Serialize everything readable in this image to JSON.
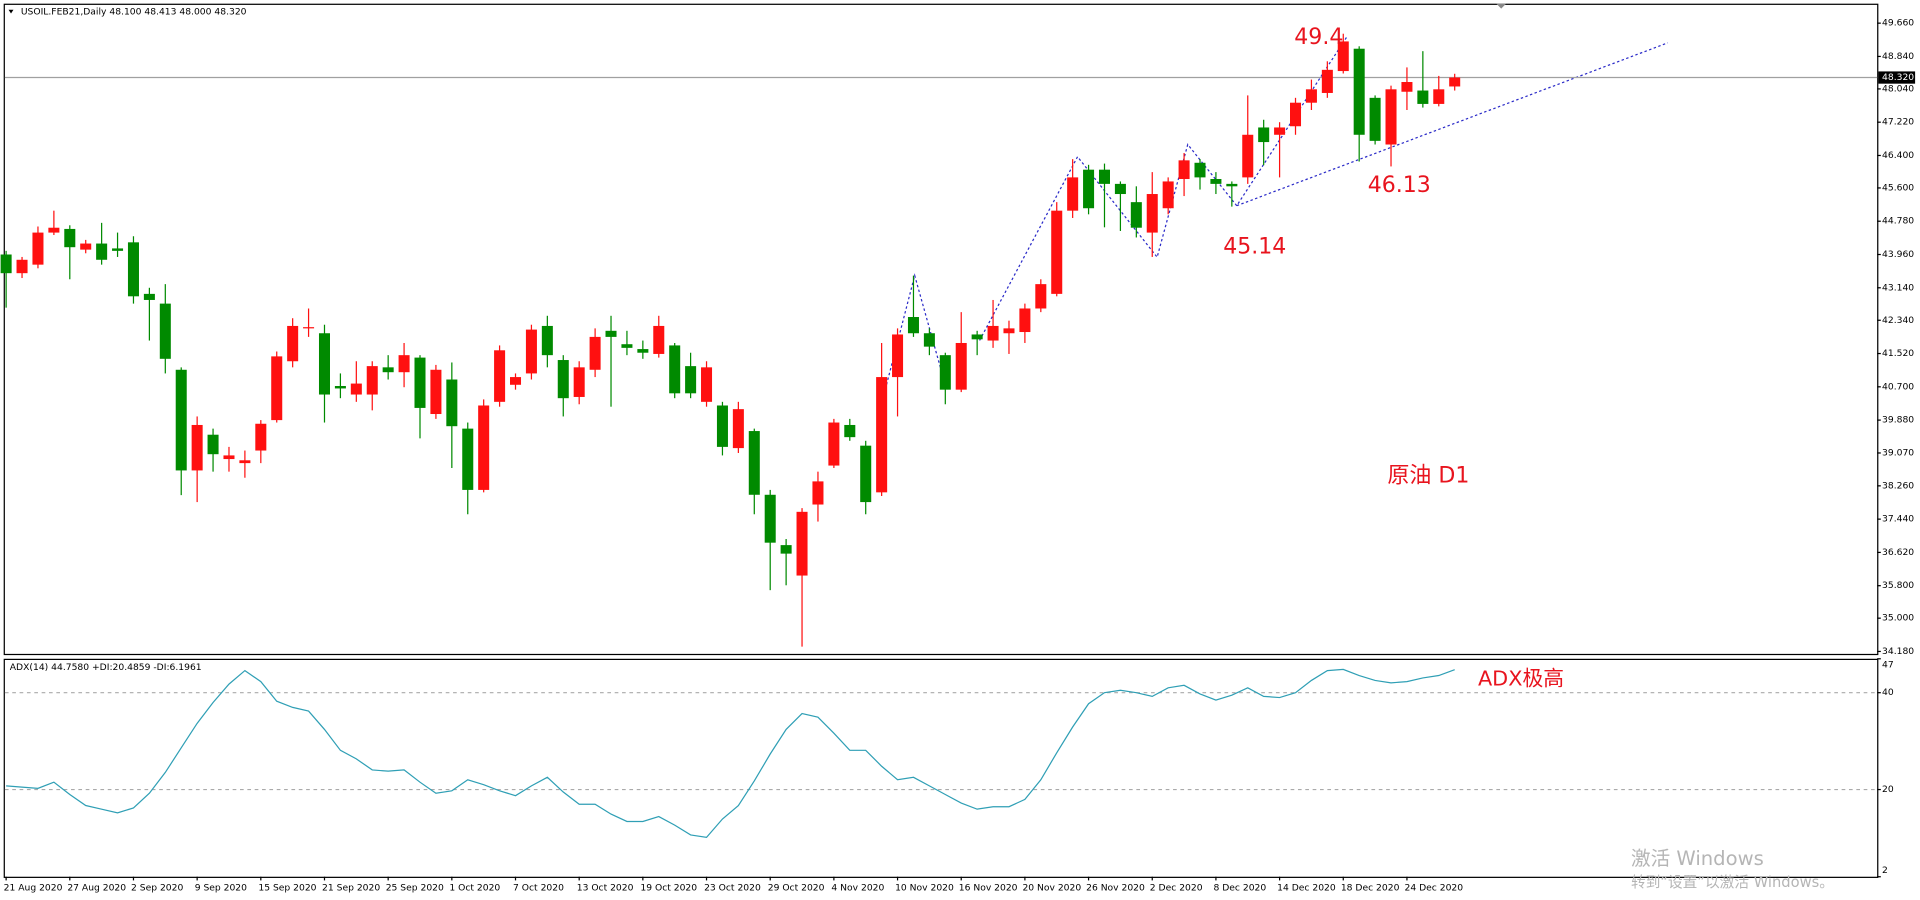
{
  "chart_data": [
    {
      "type": "candlestick",
      "title": "USOIL.FEB21,Daily  48.100 48.413 48.000 48.320",
      "up_color": "#ff1010",
      "down_color": "#008a00",
      "price_line_color": "#a0a0a0",
      "drawing_color": "#2a2ac8",
      "categories": [
        "21 Aug 2020",
        null,
        null,
        null,
        "27 Aug 2020",
        null,
        null,
        null,
        "2 Sep 2020",
        null,
        null,
        null,
        "9 Sep 2020",
        null,
        null,
        null,
        "15 Sep 2020",
        null,
        null,
        null,
        "21 Sep 2020",
        null,
        null,
        null,
        "25 Sep 2020",
        null,
        null,
        null,
        "1 Oct 2020",
        null,
        null,
        null,
        "7 Oct 2020",
        null,
        null,
        null,
        "13 Oct 2020",
        null,
        null,
        null,
        "19 Oct 2020",
        null,
        null,
        null,
        "23 Oct 2020",
        null,
        null,
        null,
        "29 Oct 2020",
        null,
        null,
        null,
        "4 Nov 2020",
        null,
        null,
        null,
        "10 Nov 2020",
        null,
        null,
        null,
        "16 Nov 2020",
        null,
        null,
        null,
        "20 Nov 2020",
        null,
        null,
        null,
        "26 Nov 2020",
        null,
        null,
        null,
        "2 Dec 2020",
        null,
        null,
        null,
        "8 Dec 2020",
        null,
        null,
        null,
        "14 Dec 2020",
        null,
        null,
        null,
        "18 Dec 2020",
        null,
        null,
        null,
        "24 Dec 2020",
        null,
        null,
        null
      ],
      "ohlc": [
        [
          43.96,
          44.05,
          42.65,
          43.5
        ],
        [
          43.5,
          43.9,
          43.38,
          43.83
        ],
        [
          43.71,
          44.65,
          43.62,
          44.5
        ],
        [
          44.5,
          45.04,
          44.44,
          44.62
        ],
        [
          44.59,
          44.68,
          43.35,
          44.14
        ],
        [
          44.08,
          44.32,
          43.99,
          44.23
        ],
        [
          44.23,
          44.74,
          43.71,
          43.83
        ],
        [
          44.11,
          44.5,
          43.9,
          44.05
        ],
        [
          44.26,
          44.41,
          42.75,
          42.93
        ],
        [
          42.99,
          43.14,
          41.84,
          42.84
        ],
        [
          42.75,
          43.23,
          41.03,
          41.39
        ],
        [
          41.12,
          41.18,
          38.03,
          38.64
        ],
        [
          38.64,
          39.97,
          37.86,
          39.76
        ],
        [
          39.52,
          39.67,
          38.61,
          39.04
        ],
        [
          38.92,
          39.22,
          38.61,
          39.01
        ],
        [
          38.82,
          39.13,
          38.46,
          38.89
        ],
        [
          39.13,
          39.88,
          38.82,
          39.79
        ],
        [
          39.88,
          41.57,
          39.82,
          41.45
        ],
        [
          41.33,
          42.39,
          41.18,
          42.2
        ],
        [
          42.14,
          42.63,
          41.93,
          42.17
        ],
        [
          42.02,
          42.23,
          39.82,
          40.51
        ],
        [
          40.72,
          41.03,
          40.42,
          40.66
        ],
        [
          40.51,
          41.33,
          40.33,
          40.78
        ],
        [
          40.51,
          41.33,
          40.12,
          41.21
        ],
        [
          41.18,
          41.48,
          40.88,
          41.06
        ],
        [
          41.06,
          41.78,
          40.69,
          41.48
        ],
        [
          41.42,
          41.48,
          39.43,
          40.18
        ],
        [
          40.03,
          41.24,
          39.91,
          41.12
        ],
        [
          40.88,
          41.3,
          38.7,
          39.73
        ],
        [
          39.67,
          39.82,
          37.56,
          38.16
        ],
        [
          38.16,
          40.39,
          38.1,
          40.24
        ],
        [
          40.33,
          41.72,
          40.21,
          41.6
        ],
        [
          40.75,
          41.03,
          40.63,
          40.94
        ],
        [
          41.03,
          42.23,
          40.88,
          42.11
        ],
        [
          42.2,
          42.45,
          41.18,
          41.48
        ],
        [
          41.36,
          41.48,
          39.97,
          40.42
        ],
        [
          40.45,
          41.33,
          40.27,
          41.18
        ],
        [
          41.12,
          42.14,
          40.94,
          41.93
        ],
        [
          42.08,
          42.45,
          40.21,
          41.93
        ],
        [
          41.75,
          42.08,
          41.48,
          41.66
        ],
        [
          41.63,
          41.84,
          41.39,
          41.54
        ],
        [
          41.51,
          42.45,
          41.42,
          42.2
        ],
        [
          41.72,
          41.78,
          40.42,
          40.54
        ],
        [
          41.21,
          41.54,
          40.42,
          40.54
        ],
        [
          40.33,
          41.33,
          40.21,
          41.18
        ],
        [
          40.24,
          40.33,
          39.01,
          39.22
        ],
        [
          39.19,
          40.33,
          39.07,
          40.15
        ],
        [
          39.61,
          39.67,
          37.56,
          38.04
        ],
        [
          38.04,
          38.16,
          35.69,
          36.86
        ],
        [
          36.8,
          36.95,
          35.81,
          36.59
        ],
        [
          36.05,
          37.71,
          34.3,
          37.62
        ],
        [
          37.8,
          38.61,
          37.38,
          38.37
        ],
        [
          38.76,
          39.91,
          38.7,
          39.82
        ],
        [
          39.76,
          39.91,
          39.37,
          39.46
        ],
        [
          39.25,
          39.37,
          37.56,
          37.86
        ],
        [
          38.1,
          41.78,
          38.01,
          40.94
        ],
        [
          40.94,
          42.14,
          39.97,
          41.99
        ],
        [
          42.42,
          43.44,
          41.93,
          42.02
        ],
        [
          42.02,
          42.14,
          41.48,
          41.69
        ],
        [
          41.48,
          41.54,
          40.27,
          40.63
        ],
        [
          40.63,
          42.54,
          40.57,
          41.78
        ],
        [
          41.99,
          42.08,
          41.48,
          41.87
        ],
        [
          41.84,
          42.84,
          41.66,
          42.2
        ],
        [
          42.02,
          42.33,
          41.51,
          42.14
        ],
        [
          42.05,
          42.75,
          41.78,
          42.63
        ],
        [
          42.63,
          43.35,
          42.54,
          43.23
        ],
        [
          42.99,
          45.25,
          42.93,
          45.04
        ],
        [
          45.04,
          46.31,
          44.86,
          45.86
        ],
        [
          46.05,
          46.17,
          44.95,
          45.1
        ],
        [
          46.05,
          46.2,
          44.63,
          45.7
        ],
        [
          45.7,
          45.76,
          44.54,
          45.45
        ],
        [
          45.25,
          45.64,
          44.38,
          44.62
        ],
        [
          44.5,
          45.99,
          43.9,
          45.45
        ],
        [
          45.1,
          45.86,
          44.95,
          45.76
        ],
        [
          45.82,
          46.46,
          45.4,
          46.28
        ],
        [
          46.22,
          46.31,
          45.56,
          45.86
        ],
        [
          45.82,
          45.99,
          45.45,
          45.7
        ],
        [
          45.7,
          45.76,
          45.14,
          45.64
        ],
        [
          45.86,
          47.88,
          45.7,
          46.91
        ],
        [
          47.09,
          47.28,
          46.16,
          46.73
        ],
        [
          46.91,
          47.22,
          45.86,
          47.09
        ],
        [
          47.12,
          47.82,
          46.91,
          47.7
        ],
        [
          47.7,
          48.27,
          47.52,
          48.03
        ],
        [
          47.94,
          48.72,
          47.82,
          48.51
        ],
        [
          48.48,
          49.4,
          48.42,
          49.21
        ],
        [
          49.03,
          49.09,
          46.25,
          46.91
        ],
        [
          47.82,
          47.88,
          46.67,
          46.76
        ],
        [
          46.67,
          48.12,
          46.13,
          48.03
        ],
        [
          47.97,
          48.57,
          47.52,
          48.21
        ],
        [
          48.0,
          48.97,
          47.58,
          47.67
        ],
        [
          47.67,
          48.36,
          47.61,
          48.03
        ],
        [
          48.1,
          48.413,
          48.0,
          48.32
        ]
      ],
      "ylim": [
        34.09,
        50.14
      ],
      "yticks": [
        {
          "value": 49.66,
          "label": "49.660"
        },
        {
          "value": 48.84,
          "label": "48.840"
        },
        {
          "value": 48.04,
          "label": "48.040"
        },
        {
          "value": 47.22,
          "label": "47.220"
        },
        {
          "value": 46.4,
          "label": "46.400"
        },
        {
          "value": 45.6,
          "label": "45.600"
        },
        {
          "value": 44.78,
          "label": "44.780"
        },
        {
          "value": 43.96,
          "label": "43.960"
        },
        {
          "value": 43.14,
          "label": "43.140"
        },
        {
          "value": 42.34,
          "label": "42.340"
        },
        {
          "value": 41.52,
          "label": "41.520"
        },
        {
          "value": 40.7,
          "label": "40.700"
        },
        {
          "value": 39.88,
          "label": "39.880"
        },
        {
          "value": 39.07,
          "label": "39.070"
        },
        {
          "value": 38.26,
          "label": "38.260"
        },
        {
          "value": 37.44,
          "label": "37.440"
        },
        {
          "value": 36.62,
          "label": "36.620"
        },
        {
          "value": 35.8,
          "label": "35.800"
        },
        {
          "value": 35.0,
          "label": "35.000"
        },
        {
          "value": 34.18,
          "label": "34.180"
        }
      ],
      "current_price": {
        "value": 48.32,
        "label": "48.320"
      },
      "annotations": [
        "49.4",
        "46.13",
        "45.14",
        "原油 D1"
      ]
    },
    {
      "type": "line",
      "title": "ADX(14) 44.7580 +DI:20.4859 -DI:6.1961",
      "color": "#2f9fb5",
      "values": [
        20.76,
        20.5,
        20.25,
        21.52,
        18.98,
        16.7,
        15.95,
        15.19,
        16.2,
        19.24,
        23.54,
        28.61,
        33.67,
        37.97,
        41.77,
        44.56,
        42.28,
        38.23,
        36.96,
        36.2,
        32.41,
        28.1,
        26.33,
        24.05,
        23.8,
        24.05,
        21.52,
        19.24,
        19.74,
        22.02,
        21.01,
        19.74,
        18.73,
        20.76,
        22.53,
        19.49,
        16.96,
        16.96,
        14.93,
        13.41,
        13.41,
        14.43,
        12.65,
        10.63,
        10.12,
        13.92,
        16.7,
        21.77,
        27.34,
        32.41,
        35.7,
        34.94,
        31.64,
        28.1,
        28.1,
        24.81,
        22.02,
        22.53,
        20.76,
        18.98,
        17.21,
        15.95,
        16.45,
        16.45,
        17.97,
        22.02,
        27.59,
        32.91,
        37.72,
        40.0,
        40.51,
        40.0,
        39.24,
        41.01,
        41.52,
        39.75,
        38.48,
        39.49,
        41.01,
        39.24,
        38.99,
        40.0,
        42.53,
        44.56,
        44.81,
        43.54,
        42.53,
        42.03,
        42.28,
        43.04,
        43.54,
        44.758
      ],
      "ylim": [
        2,
        47
      ],
      "yticks": [
        47,
        40,
        20,
        2
      ],
      "levels": [
        40,
        20
      ],
      "annotations": [
        "ADX极高"
      ]
    }
  ],
  "watermark": [
    "激活 Windows",
    "转到“设置”以激活 Windows。"
  ]
}
